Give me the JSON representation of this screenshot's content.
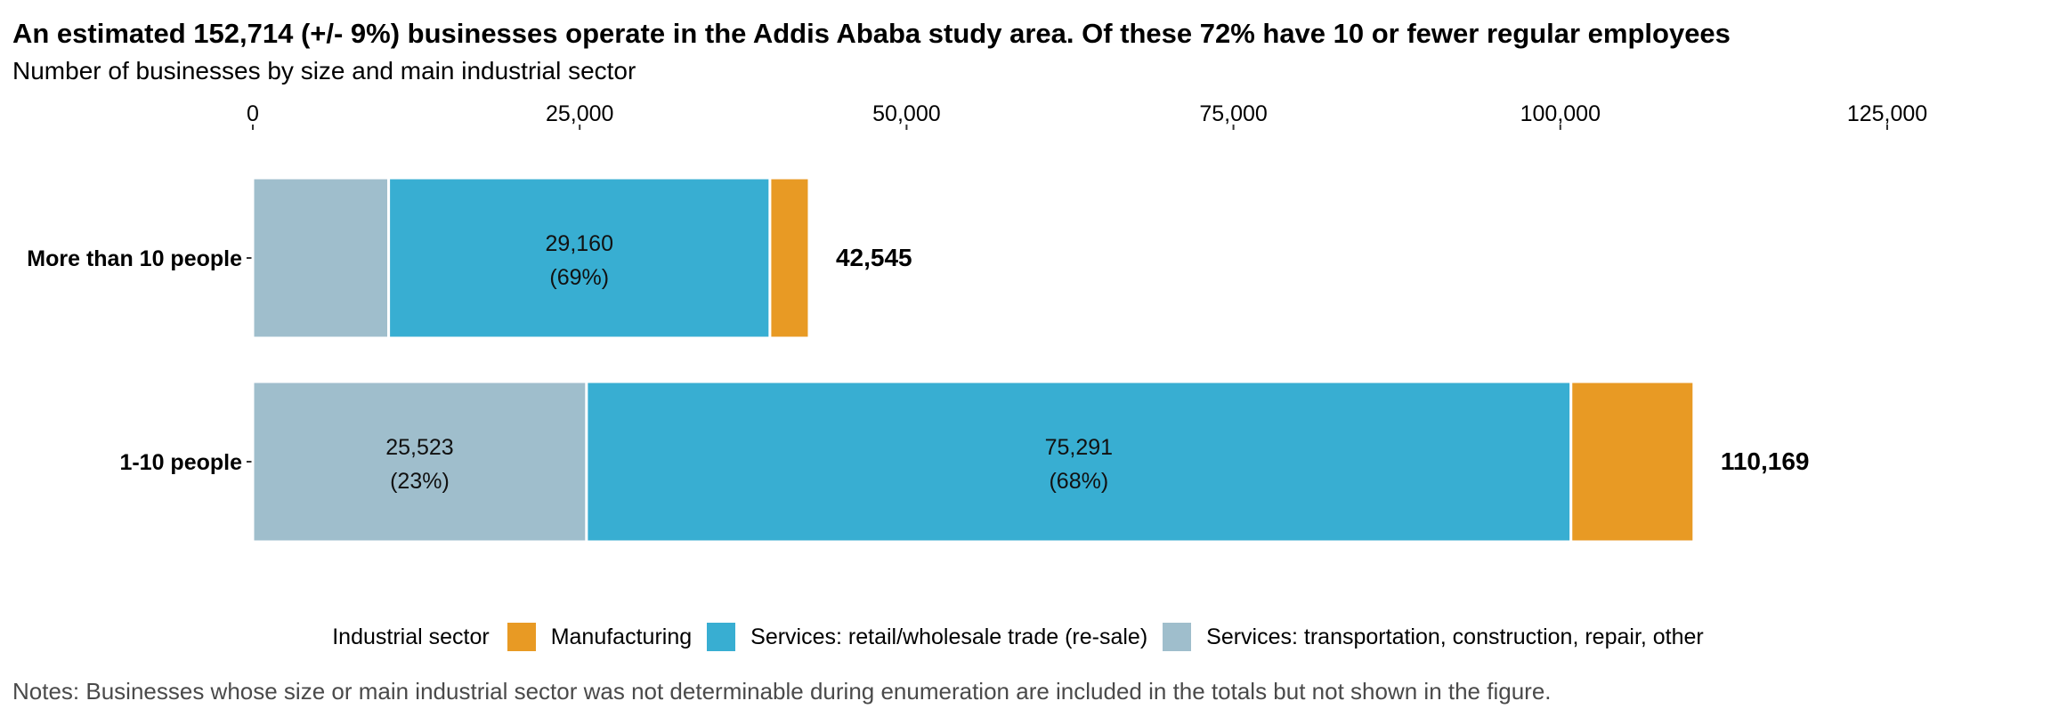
{
  "chart_data": {
    "type": "bar",
    "orientation": "horizontal",
    "stacked": true,
    "title": "An estimated 152,714 (+/- 9%) businesses operate in the Addis Ababa study area. Of these 72% have 10 or fewer regular employees",
    "subtitle": "Number of businesses by size and main industrial sector",
    "categories": [
      "More than 10 people",
      "1-10 people"
    ],
    "series": [
      {
        "name": "Services: transportation, construction, repair, other",
        "color": "#9fbecc",
        "values": [
          10390,
          25523
        ],
        "labels": [
          "",
          "25,523\n(23%)"
        ]
      },
      {
        "name": "Services: retail/wholesale trade (re-sale)",
        "color": "#38aed2",
        "values": [
          29160,
          75291
        ],
        "labels": [
          "29,160\n(69%)",
          "75,291\n(68%)"
        ]
      },
      {
        "name": "Manufacturing",
        "color": "#e89a24",
        "values": [
          3000,
          9400
        ],
        "labels": [
          "",
          ""
        ]
      }
    ],
    "totals": [
      "42,545",
      "110,169"
    ],
    "xlim": [
      0,
      125000
    ],
    "x_ticks": [
      0,
      25000,
      50000,
      75000,
      100000,
      125000
    ],
    "x_tick_labels": [
      "0",
      "25,000",
      "50,000",
      "75,000",
      "100,000",
      "125,000"
    ],
    "x_axis_position": "top",
    "grid": false,
    "legend_position": "bottom"
  },
  "legend": {
    "title": "Industrial sector",
    "items": [
      {
        "label": "Manufacturing",
        "color": "#e89a24"
      },
      {
        "label": "Services: retail/wholesale trade (re-sale)",
        "color": "#38aed2"
      },
      {
        "label": "Services: transportation, construction, repair, other",
        "color": "#9fbecc"
      }
    ]
  },
  "notes": "Notes: Businesses whose size or main industrial sector was not determinable during enumeration are included in the totals but not shown in the figure."
}
